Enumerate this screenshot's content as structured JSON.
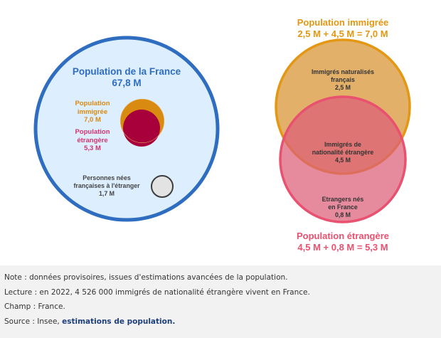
{
  "diagram": {
    "left": {
      "france": {
        "title": "Population de la France",
        "value": "67,8 M"
      },
      "immigree": {
        "title_line1": "Population",
        "title_line2": "immigrée",
        "value": "7,0 M"
      },
      "etrangere": {
        "title_line1": "Population",
        "title_line2": "étrangère",
        "value": "5,3 M"
      },
      "nes_etranger": {
        "line1": "Personnes nées",
        "line2": "françaises à l'étranger",
        "value": "1,7 M"
      }
    },
    "right": {
      "immigree_title": "Population immigrée",
      "immigree_formula": "2,5 M + 4,5 M = 7,0 M",
      "naturalises": {
        "line1": "Immigrés naturalisés",
        "line2": "français",
        "value": "2,5 M"
      },
      "nationalite": {
        "line1": "Immigrés de",
        "line2": "nationalité étrangère",
        "value": "4,5 M"
      },
      "nes_france": {
        "line1": "Etrangers nés",
        "line2": "en France",
        "value": "0,8 M"
      },
      "etrangere_title": "Population étrangère",
      "etrangere_formula": "4,5 M + 0,8 M = 5,3 M"
    },
    "colors": {
      "france_fill": "#ddeeff",
      "france_stroke": "#2e6dbf",
      "immigree": "#e39712",
      "etrangere": "#e8516f",
      "etrangere_dark": "#a8003a",
      "nes_etranger_fill": "#e3e3e3"
    }
  },
  "notes": {
    "note": "Note : données provisoires, issues d'estimations avancées de la population.",
    "lecture": "Lecture : en 2022, 4 526 000 immigrés de nationalité étrangère vivent en France.",
    "champ": "Champ : France.",
    "source_prefix": "Source : Insee, ",
    "source_link": "estimations de population."
  }
}
